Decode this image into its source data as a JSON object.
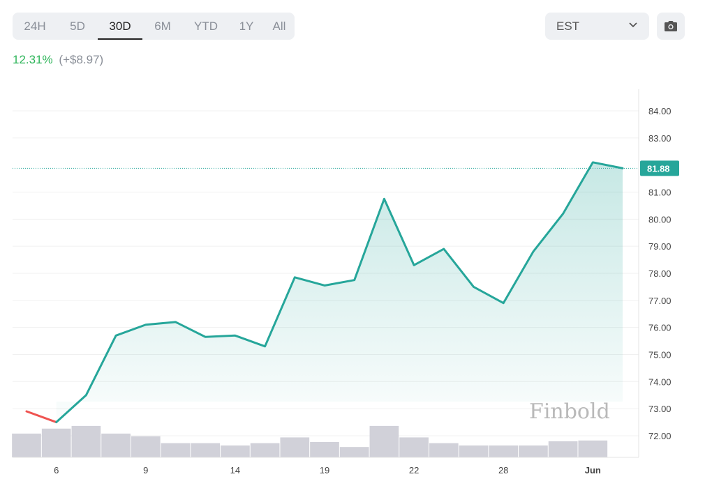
{
  "range_tabs": [
    {
      "label": "24H",
      "active": false
    },
    {
      "label": "5D",
      "active": false
    },
    {
      "label": "30D",
      "active": true
    },
    {
      "label": "6M",
      "active": false
    },
    {
      "label": "YTD",
      "active": false
    },
    {
      "label": "1Y",
      "active": false
    },
    {
      "label": "All",
      "active": false
    }
  ],
  "timezone": {
    "selected": "EST"
  },
  "icons": {
    "timezone_chevron": "chevron-down-icon",
    "snapshot": "camera-icon"
  },
  "change": {
    "percent": "12.31%",
    "absolute": "(+$8.97)"
  },
  "watermark": "Finbold",
  "colors": {
    "line_up": "#26a69a",
    "line_down": "#ef5350",
    "change_positive": "#2fb55a",
    "volume": "#d1d1d9",
    "last_price_label": "#26a69a"
  },
  "chart_data": {
    "type": "line",
    "y_axis_side": "right",
    "ylim": [
      71.2,
      84.8
    ],
    "yticks": [
      72.0,
      73.0,
      74.0,
      75.0,
      76.0,
      77.0,
      78.0,
      79.0,
      80.0,
      81.0,
      83.0,
      84.0
    ],
    "last_price": 81.88,
    "last_price_label": "81.88",
    "x_ticks": [
      {
        "label": "6",
        "index": 1
      },
      {
        "label": "9",
        "index": 4
      },
      {
        "label": "14",
        "index": 7
      },
      {
        "label": "19",
        "index": 10
      },
      {
        "label": "22",
        "index": 13
      },
      {
        "label": "28",
        "index": 16
      },
      {
        "label": "Jun",
        "index": 19
      }
    ],
    "series": [
      {
        "values": [
          72.9,
          72.5,
          73.5,
          75.7,
          76.1,
          76.2,
          75.65,
          75.7,
          75.3,
          77.85,
          77.55,
          77.75,
          80.75,
          78.3,
          78.9,
          77.5,
          76.9,
          78.8,
          80.2,
          82.1,
          81.88
        ]
      }
    ],
    "volume": [
      0.62,
      0.75,
      0.82,
      0.62,
      0.55,
      0.37,
      0.37,
      0.31,
      0.37,
      0.52,
      0.4,
      0.27,
      0.82,
      0.52,
      0.37,
      0.31,
      0.31,
      0.31,
      0.42,
      0.44,
      0.0
    ],
    "grid": true
  }
}
